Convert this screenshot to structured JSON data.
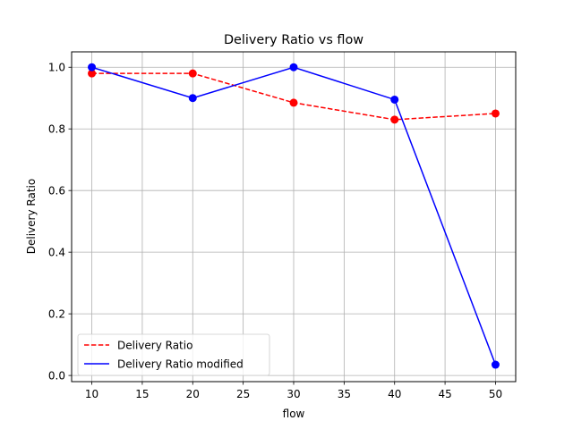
{
  "chart_data": {
    "type": "line",
    "title": "Delivery Ratio vs flow",
    "xlabel": "flow",
    "ylabel": "Delivery Ratio",
    "xlim": [
      8,
      52
    ],
    "ylim": [
      -0.02,
      1.05
    ],
    "x": [
      10,
      20,
      30,
      40,
      50
    ],
    "xticks": [
      10,
      15,
      20,
      25,
      30,
      35,
      40,
      45,
      50
    ],
    "yticks": [
      0.0,
      0.2,
      0.4,
      0.6,
      0.8,
      1.0
    ],
    "xtick_labels": [
      "10",
      "15",
      "20",
      "25",
      "30",
      "35",
      "40",
      "45",
      "50"
    ],
    "ytick_labels": [
      "0.0",
      "0.2",
      "0.4",
      "0.6",
      "0.8",
      "1.0"
    ],
    "grid": true,
    "legend_position": "lower-left",
    "series": [
      {
        "name": "Delivery Ratio",
        "values": [
          0.98,
          0.98,
          0.885,
          0.83,
          0.85
        ],
        "color": "#ff0000",
        "dash": "dashed"
      },
      {
        "name": "Delivery Ratio modified",
        "values": [
          1.0,
          0.9,
          1.0,
          0.895,
          0.035
        ],
        "color": "#0000ff",
        "dash": "solid"
      }
    ]
  }
}
